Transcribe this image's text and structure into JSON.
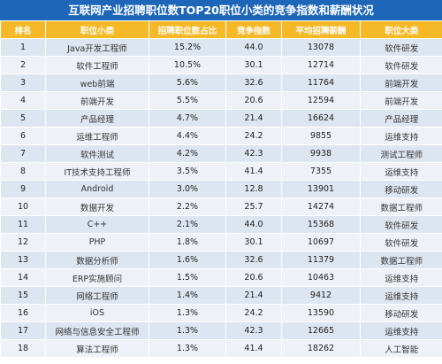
{
  "title": "互联网产业招聘职位数TOP20职位小类的竞争指数和薪酬状况",
  "columns": [
    "排名",
    "职位小类",
    "招聘职位数占比",
    "竞争指数",
    "平均招聘薪酬",
    "职位大类"
  ],
  "rows": [
    {
      "rank": "1",
      "job": "Java开发工程师",
      "share": "15.2%",
      "competition": "44.0",
      "salary": "13078",
      "category": "软件研发"
    },
    {
      "rank": "2",
      "job": "软件工程师",
      "share": "10.5%",
      "competition": "30.1",
      "salary": "12714",
      "category": "软件研发"
    },
    {
      "rank": "3",
      "job": "web前端",
      "share": "5.6%",
      "competition": "32.6",
      "salary": "11764",
      "category": "前端开发"
    },
    {
      "rank": "4",
      "job": "前端开发",
      "share": "5.5%",
      "competition": "20.6",
      "salary": "12594",
      "category": "前端开发"
    },
    {
      "rank": "5",
      "job": "产品经理",
      "share": "4.7%",
      "competition": "21.4",
      "salary": "16624",
      "category": "产品经理"
    },
    {
      "rank": "6",
      "job": "运维工程师",
      "share": "4.4%",
      "competition": "24.2",
      "salary": "9855",
      "category": "运维支持"
    },
    {
      "rank": "7",
      "job": "软件测试",
      "share": "4.2%",
      "competition": "42.3",
      "salary": "9938",
      "category": "测试工程师"
    },
    {
      "rank": "8",
      "job": "IT技术支持工程师",
      "share": "3.5%",
      "competition": "41.4",
      "salary": "7355",
      "category": "运维支持"
    },
    {
      "rank": "9",
      "job": "Android",
      "share": "3.0%",
      "competition": "12.8",
      "salary": "13901",
      "category": "移动研发"
    },
    {
      "rank": "10",
      "job": "数据开发",
      "share": "2.2%",
      "competition": "25.7",
      "salary": "14274",
      "category": "数据工程师"
    },
    {
      "rank": "11",
      "job": "C++",
      "share": "2.1%",
      "competition": "44.0",
      "salary": "15368",
      "category": "软件研发"
    },
    {
      "rank": "12",
      "job": "PHP",
      "share": "1.8%",
      "competition": "30.1",
      "salary": "10697",
      "category": "软件研发"
    },
    {
      "rank": "13",
      "job": "数据分析师",
      "share": "1.6%",
      "competition": "32.6",
      "salary": "11379",
      "category": "数据工程师"
    },
    {
      "rank": "14",
      "job": "ERP实施顾问",
      "share": "1.5%",
      "competition": "20.6",
      "salary": "10463",
      "category": "运维支持"
    },
    {
      "rank": "15",
      "job": "网络工程师",
      "share": "1.4%",
      "competition": "21.4",
      "salary": "9412",
      "category": "运维支持"
    },
    {
      "rank": "16",
      "job": "iOS",
      "share": "1.3%",
      "competition": "24.2",
      "salary": "13590",
      "category": "移动研发"
    },
    {
      "rank": "17",
      "job": "网络与信息安全工程师",
      "share": "1.3%",
      "competition": "42.3",
      "salary": "12665",
      "category": "运维支持"
    },
    {
      "rank": "18",
      "job": "算法工程师",
      "share": "1.3%",
      "competition": "41.4",
      "salary": "18262",
      "category": "人工智能"
    }
  ]
}
